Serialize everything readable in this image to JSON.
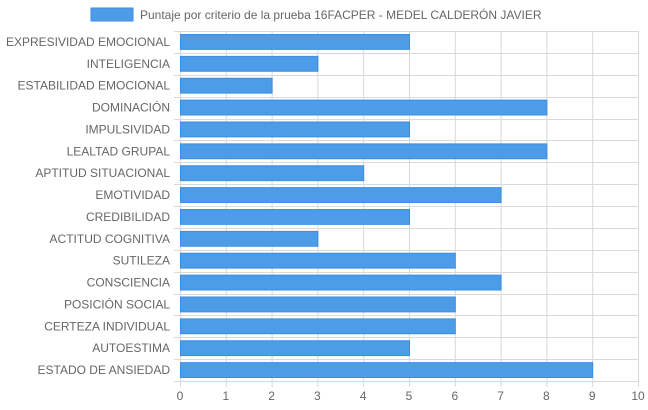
{
  "chart_data": {
    "type": "bar",
    "orientation": "horizontal",
    "title": "",
    "legend": {
      "label": "Puntaje por criterio de la prueba 16FACPER - MEDEL CALDERÓN JAVIER",
      "placement": "top"
    },
    "categories": [
      "EXPRESIVIDAD EMOCIONAL",
      "INTELIGENCIA",
      "ESTABILIDAD EMOCIONAL",
      "DOMINACIÓN",
      "IMPULSIVIDAD",
      "LEALTAD GRUPAL",
      "APTITUD SITUACIONAL",
      "EMOTIVIDAD",
      "CREDIBILIDAD",
      "ACTITUD COGNITIVA",
      "SUTILEZA",
      "CONSCIENCIA",
      "POSICIÓN SOCIAL",
      "CERTEZA INDIVIDUAL",
      "AUTOESTIMA",
      "ESTADO DE ANSIEDAD"
    ],
    "series": [
      {
        "name": "Puntaje por criterio de la prueba 16FACPER - MEDEL CALDERÓN JAVIER",
        "values": [
          5,
          3,
          2,
          8,
          5,
          8,
          4,
          7,
          5,
          3,
          6,
          7,
          6,
          6,
          5,
          9
        ]
      }
    ],
    "xlim": [
      0,
      10
    ],
    "xticks": [
      "0",
      "1",
      "2",
      "3",
      "4",
      "5",
      "6",
      "7",
      "8",
      "9",
      "10"
    ],
    "grid": true,
    "colors": {
      "bar_fill": "#4d9ce8",
      "bar_stroke": "#3a8ee6",
      "grid": "#d9d9d9",
      "text": "#666666"
    }
  }
}
